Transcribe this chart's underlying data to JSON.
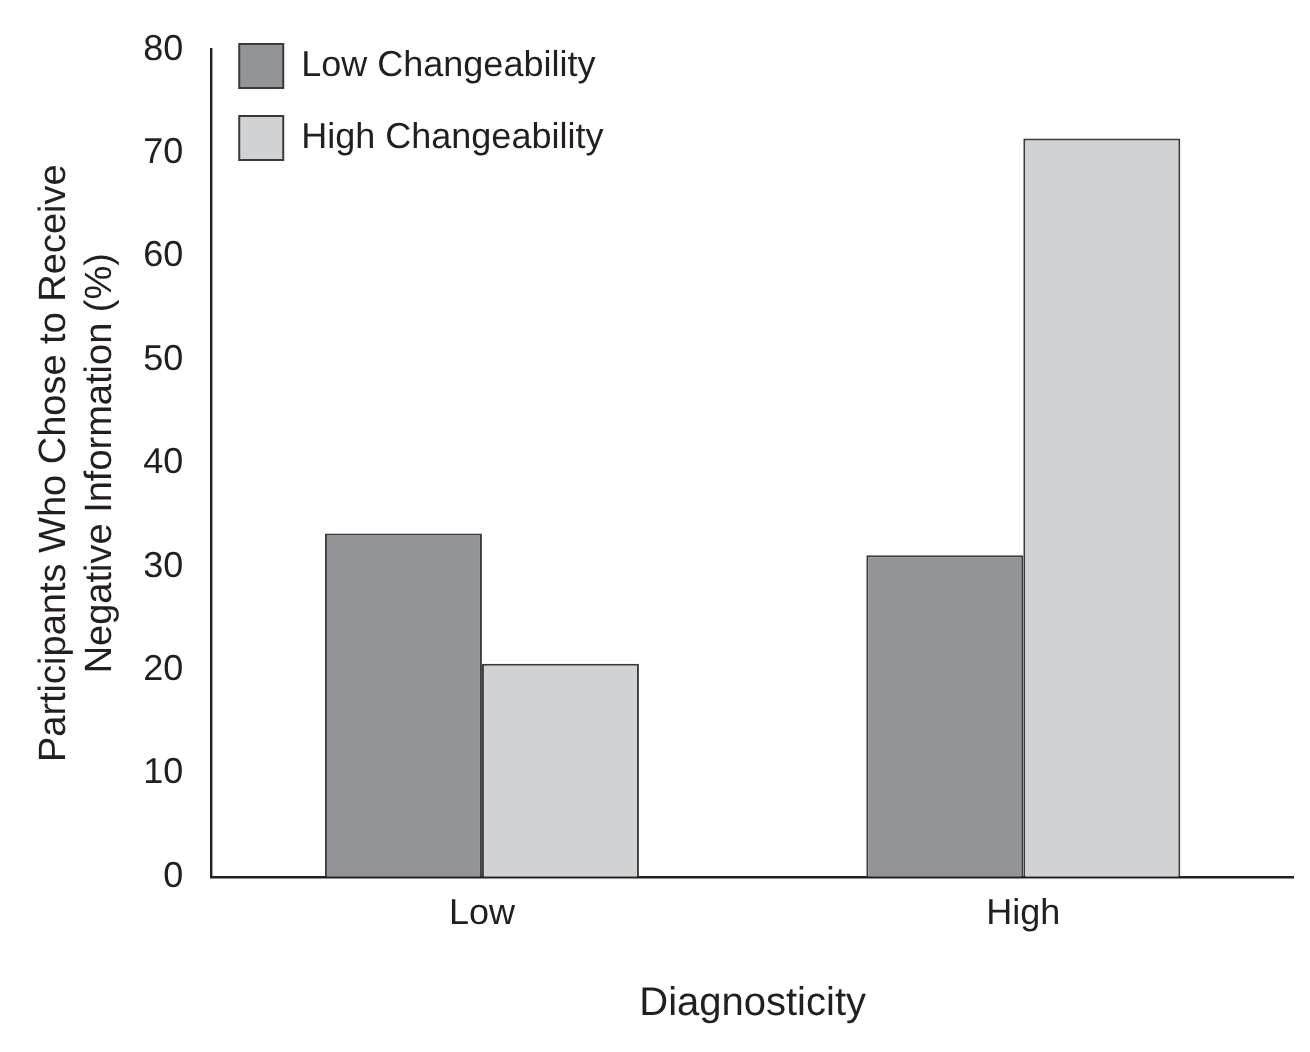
{
  "chart_data": {
    "type": "bar",
    "xlabel": "Diagnosticity",
    "ylabel": "Participants Who Chose to Receive Negative Information (%)",
    "categories": [
      "Low",
      "High"
    ],
    "series": [
      {
        "name": "Low Changeability",
        "color": "#939497",
        "values": [
          33.2,
          31.1
        ]
      },
      {
        "name": "High Changeability",
        "color": "#d1d2d4",
        "values": [
          20.6,
          71.4
        ]
      }
    ],
    "ylim": [
      0,
      80
    ],
    "yticks": [
      0,
      10,
      20,
      30,
      40,
      50,
      60,
      70,
      80
    ],
    "grid": false,
    "legend": "top left"
  }
}
